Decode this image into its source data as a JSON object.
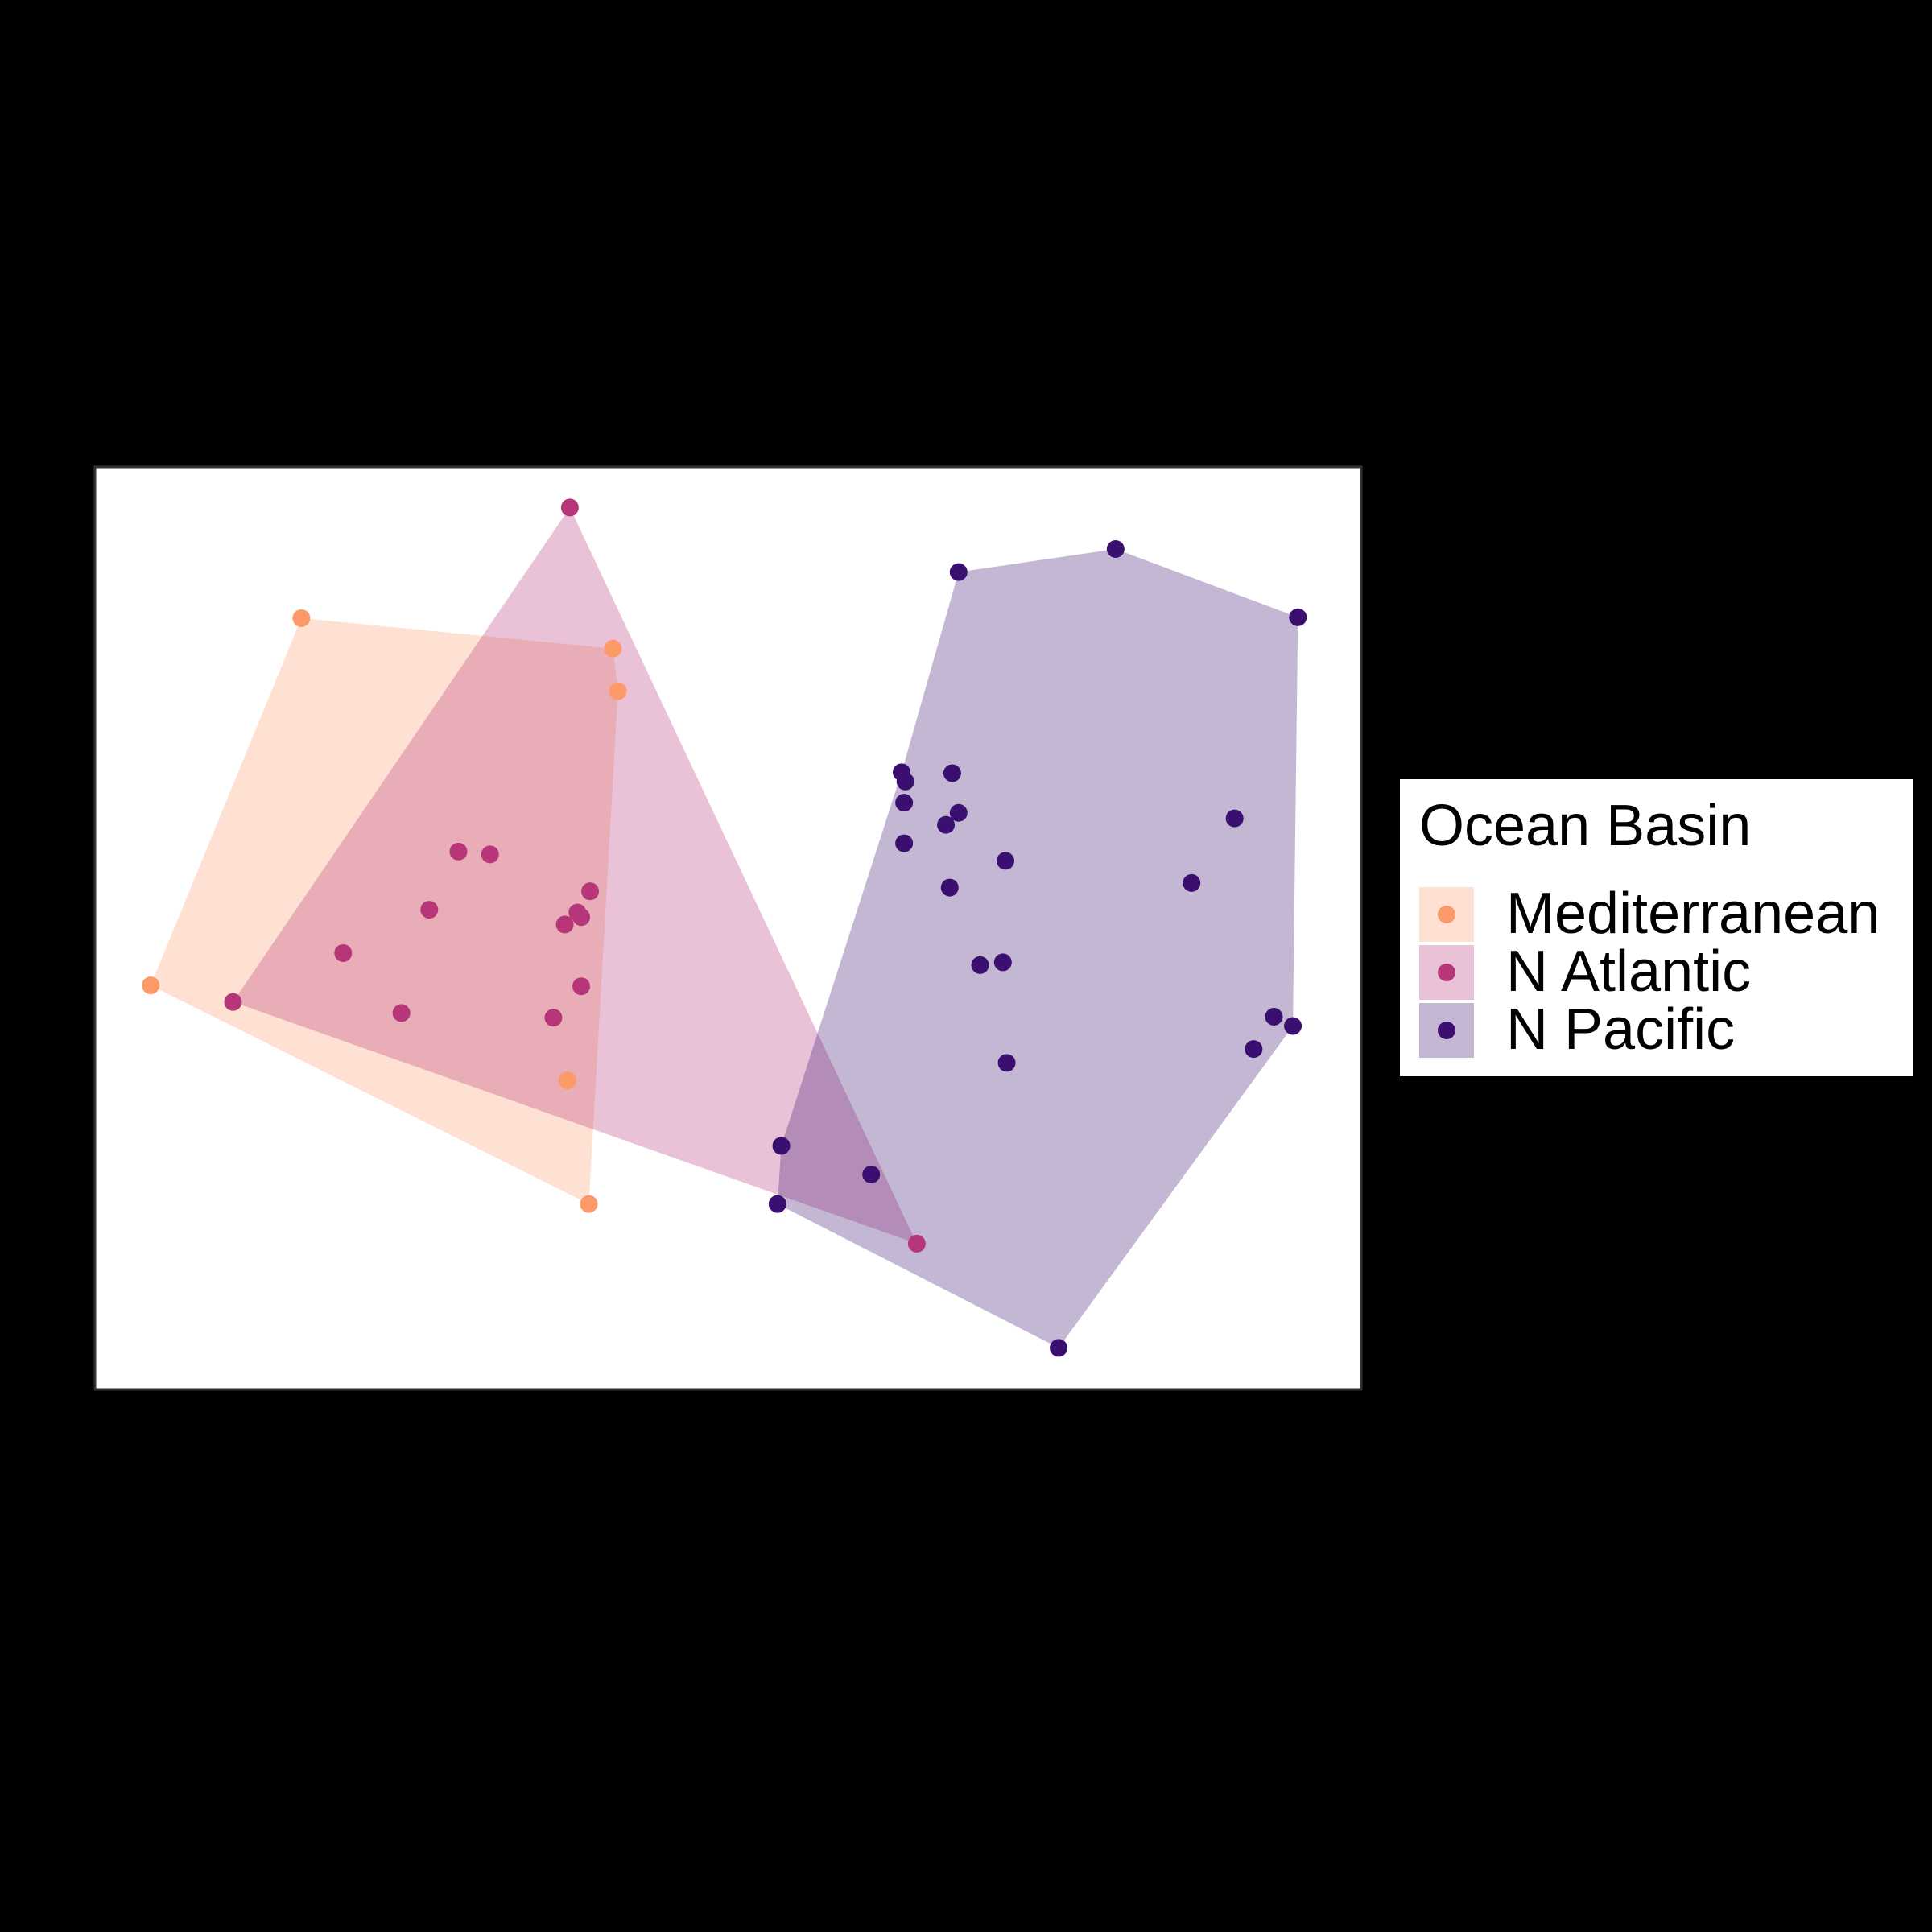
{
  "chart_data": {
    "type": "scatter",
    "title": "",
    "xlabel": "",
    "ylabel": "",
    "xlim": [
      0,
      100
    ],
    "ylim": [
      0,
      100
    ],
    "grid": false,
    "axes_visible": false,
    "hulls": true,
    "legend": {
      "title": "Ocean Basin",
      "position": "right"
    },
    "series": [
      {
        "name": "Mediterranean",
        "color": "#fd9a6a",
        "points": [
          {
            "x": 16.3,
            "y": 83.6
          },
          {
            "x": 40.9,
            "y": 80.3
          },
          {
            "x": 41.3,
            "y": 75.7
          },
          {
            "x": 4.4,
            "y": 43.8
          },
          {
            "x": 37.3,
            "y": 33.5
          },
          {
            "x": 39.0,
            "y": 20.1
          }
        ],
        "hull": [
          [
            16.3,
            83.6
          ],
          [
            40.9,
            80.3
          ],
          [
            41.3,
            75.7
          ],
          [
            39.0,
            20.1
          ],
          [
            4.4,
            43.8
          ]
        ]
      },
      {
        "name": "N Atlantic",
        "color": "#b63679",
        "points": [
          {
            "x": 37.5,
            "y": 95.6
          },
          {
            "x": 28.7,
            "y": 58.3
          },
          {
            "x": 31.2,
            "y": 58.0
          },
          {
            "x": 39.1,
            "y": 54.0
          },
          {
            "x": 26.4,
            "y": 52.0
          },
          {
            "x": 38.1,
            "y": 51.7
          },
          {
            "x": 38.4,
            "y": 51.2
          },
          {
            "x": 37.1,
            "y": 50.4
          },
          {
            "x": 19.6,
            "y": 47.3
          },
          {
            "x": 38.4,
            "y": 43.7
          },
          {
            "x": 10.9,
            "y": 42.0
          },
          {
            "x": 24.2,
            "y": 40.8
          },
          {
            "x": 36.2,
            "y": 40.3
          },
          {
            "x": 64.9,
            "y": 15.8
          }
        ],
        "hull": [
          [
            37.5,
            95.6
          ],
          [
            64.9,
            15.8
          ],
          [
            10.9,
            42.0
          ]
        ]
      },
      {
        "name": "N Pacific",
        "color": "#3b0f70",
        "points": [
          {
            "x": 80.6,
            "y": 91.1
          },
          {
            "x": 68.2,
            "y": 88.6
          },
          {
            "x": 95.0,
            "y": 83.7
          },
          {
            "x": 63.7,
            "y": 66.9
          },
          {
            "x": 67.7,
            "y": 66.8
          },
          {
            "x": 64.0,
            "y": 65.9
          },
          {
            "x": 63.9,
            "y": 63.6
          },
          {
            "x": 68.2,
            "y": 62.5
          },
          {
            "x": 90.0,
            "y": 61.9
          },
          {
            "x": 67.2,
            "y": 61.2
          },
          {
            "x": 63.9,
            "y": 59.2
          },
          {
            "x": 71.9,
            "y": 57.3
          },
          {
            "x": 86.6,
            "y": 54.9
          },
          {
            "x": 67.5,
            "y": 54.4
          },
          {
            "x": 71.7,
            "y": 46.3
          },
          {
            "x": 69.9,
            "y": 46.0
          },
          {
            "x": 93.1,
            "y": 40.4
          },
          {
            "x": 94.6,
            "y": 39.4
          },
          {
            "x": 91.5,
            "y": 36.9
          },
          {
            "x": 72.0,
            "y": 35.4
          },
          {
            "x": 54.2,
            "y": 26.4
          },
          {
            "x": 61.3,
            "y": 23.3
          },
          {
            "x": 53.9,
            "y": 20.1
          },
          {
            "x": 76.1,
            "y": 4.5
          }
        ],
        "hull": [
          [
            68.2,
            88.6
          ],
          [
            80.6,
            91.1
          ],
          [
            95.0,
            83.7
          ],
          [
            94.6,
            39.4
          ],
          [
            76.1,
            4.5
          ],
          [
            53.9,
            20.1
          ],
          [
            54.2,
            26.4
          ],
          [
            63.7,
            66.9
          ]
        ]
      }
    ]
  }
}
